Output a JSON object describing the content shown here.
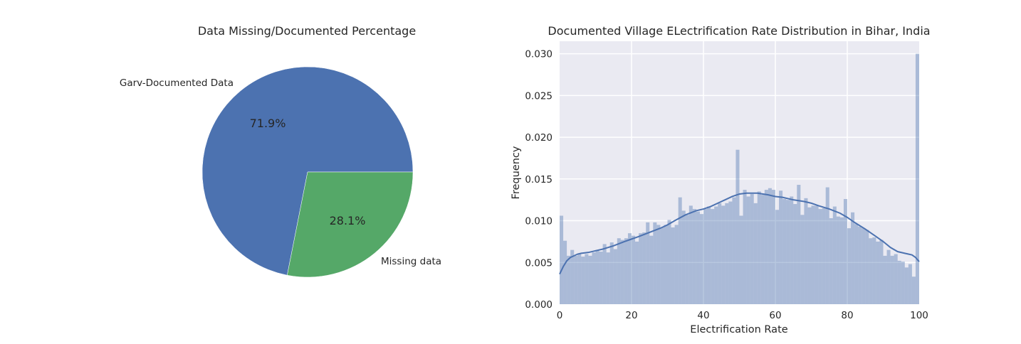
{
  "chart_data": [
    {
      "type": "pie",
      "title": "Data Missing/Documented Percentage",
      "labels": [
        "Garv-Documented Data",
        "Missing data"
      ],
      "values": [
        71.9,
        28.1
      ],
      "pct_labels": [
        "71.9%",
        "28.1%"
      ],
      "colors": [
        "#4c72b0",
        "#55a868"
      ]
    },
    {
      "type": "bar",
      "title": "Documented Village ELectrification Rate Distribution in Bihar, India",
      "xlabel": "Electrification Rate",
      "ylabel": "Frequency",
      "xlim": [
        0,
        100
      ],
      "ylim": [
        0,
        0.0315
      ],
      "grid": true,
      "xticks": [
        0,
        20,
        40,
        60,
        80,
        100
      ],
      "xtick_labels": [
        "0",
        "20",
        "40",
        "60",
        "80",
        "100"
      ],
      "yticks": [
        0,
        0.005,
        0.01,
        0.015,
        0.02,
        0.025,
        0.03
      ],
      "ytick_labels": [
        "0.000",
        "0.005",
        "0.010",
        "0.015",
        "0.020",
        "0.025",
        "0.030"
      ],
      "bin_width": 1,
      "hist_values": [
        0.0106,
        0.0076,
        0.0058,
        0.0065,
        0.0058,
        0.006,
        0.0057,
        0.006,
        0.0058,
        0.0062,
        0.0065,
        0.0063,
        0.0072,
        0.0062,
        0.0074,
        0.0066,
        0.0079,
        0.0077,
        0.0079,
        0.0085,
        0.0082,
        0.0075,
        0.0085,
        0.0086,
        0.0098,
        0.0082,
        0.0098,
        0.0095,
        0.0092,
        0.0095,
        0.0101,
        0.0092,
        0.0095,
        0.0128,
        0.0112,
        0.0107,
        0.0118,
        0.0114,
        0.0111,
        0.0108,
        0.0114,
        0.0117,
        0.0114,
        0.0117,
        0.0121,
        0.0118,
        0.0121,
        0.0123,
        0.0128,
        0.0185,
        0.0106,
        0.0137,
        0.0129,
        0.0132,
        0.0121,
        0.0135,
        0.0131,
        0.0137,
        0.0139,
        0.0137,
        0.0113,
        0.0136,
        0.0126,
        0.0125,
        0.0129,
        0.012,
        0.0143,
        0.0107,
        0.0127,
        0.0116,
        0.0118,
        0.0118,
        0.0114,
        0.0115,
        0.014,
        0.0103,
        0.0117,
        0.0105,
        0.0104,
        0.0126,
        0.0091,
        0.011,
        0.0096,
        0.0093,
        0.0091,
        0.0089,
        0.0079,
        0.008,
        0.0075,
        0.0077,
        0.0058,
        0.0065,
        0.0058,
        0.006,
        0.0052,
        0.0051,
        0.0044,
        0.0048,
        0.0033,
        0.03
      ],
      "kde": {
        "x": [
          0,
          1,
          2,
          3,
          4,
          5,
          6,
          8,
          10,
          12,
          15,
          18,
          20,
          22,
          25,
          28,
          30,
          32,
          35,
          38,
          40,
          42,
          45,
          48,
          50,
          52,
          55,
          58,
          60,
          62,
          65,
          68,
          70,
          72,
          75,
          78,
          80,
          82,
          85,
          88,
          90,
          92,
          94,
          96,
          97,
          98,
          99,
          100
        ],
        "y": [
          0.0036,
          0.0045,
          0.0052,
          0.0056,
          0.0058,
          0.006,
          0.0061,
          0.0062,
          0.0064,
          0.0066,
          0.007,
          0.0075,
          0.0078,
          0.0081,
          0.0086,
          0.0091,
          0.0095,
          0.01,
          0.0107,
          0.0112,
          0.0114,
          0.0117,
          0.0123,
          0.0129,
          0.0132,
          0.0133,
          0.0133,
          0.0131,
          0.0129,
          0.0128,
          0.0125,
          0.0123,
          0.0121,
          0.0118,
          0.0114,
          0.0109,
          0.0104,
          0.0098,
          0.009,
          0.0081,
          0.0075,
          0.0068,
          0.0063,
          0.0061,
          0.006,
          0.0059,
          0.0056,
          0.0051
        ]
      },
      "bar_color": "#4c72b0",
      "line_color": "#4c72b0",
      "plot_bg": "#eaeaf2"
    }
  ]
}
